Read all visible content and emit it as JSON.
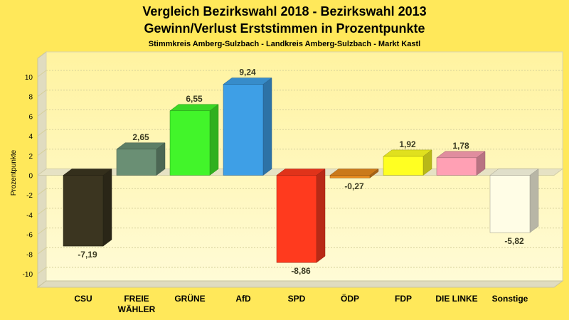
{
  "chart_data": {
    "type": "bar",
    "title": "Vergleich Bezirkswahl 2018 - Bezirkswahl 2013",
    "subtitle": "Gewinn/Verlust Erststimmen in Prozentpunkte",
    "subsubtitle": "Stimmkreis Amberg-Sulzbach - Landkreis Amberg-Sulzbach - Markt Kastl",
    "ylabel": "Prozentpunkte",
    "xlabel": "",
    "ylim": [
      -10,
      10
    ],
    "yticks": [
      "10",
      "8",
      "6",
      "4",
      "2",
      "0",
      "-2",
      "-4",
      "-6",
      "-8",
      "-10"
    ],
    "grid": true,
    "categories": [
      [
        "CSU"
      ],
      [
        "FREIE",
        "WÄHLER"
      ],
      [
        "GRÜNE"
      ],
      [
        "AfD"
      ],
      [
        "SPD"
      ],
      [
        "ÖDP"
      ],
      [
        "FDP"
      ],
      [
        "DIE LINKE"
      ],
      [
        "Sonstige"
      ]
    ],
    "values": [
      -7.19,
      2.65,
      6.55,
      9.24,
      -8.86,
      -0.27,
      1.92,
      1.78,
      -5.82
    ],
    "value_labels": [
      "-7,19",
      "2,65",
      "6,55",
      "9,24",
      "-8,86",
      "-0,27",
      "1,92",
      "1,78",
      "-5,82"
    ],
    "colors": [
      "#3b3520",
      "#6a8f74",
      "#42f52a",
      "#3e9fe6",
      "#ff3a1e",
      "#e68a1e",
      "#ffff22",
      "#ffa0b4",
      "#fffde6"
    ]
  }
}
